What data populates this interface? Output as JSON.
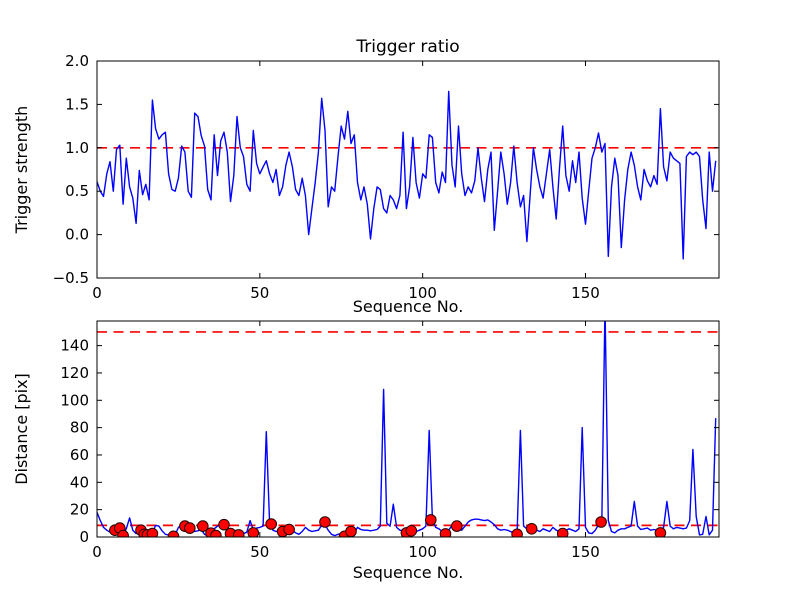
{
  "figure": {
    "title": "Trigger ratio",
    "background_color": "#ffffff",
    "line_color": "#0000ff",
    "threshold_color": "#ff0000",
    "marker_face_color": "#ff0000",
    "marker_edge_color": "#220000"
  },
  "chart_data": [
    {
      "type": "line",
      "title": "Trigger ratio",
      "xlabel": "Sequence No.",
      "ylabel": "Trigger strength",
      "xlim": [
        0,
        191
      ],
      "ylim": [
        -0.5,
        2.0
      ],
      "xticks": [
        0,
        50,
        100,
        150
      ],
      "xtick_labels": [
        "0",
        "50",
        "100",
        "150"
      ],
      "yticks": [
        -0.5,
        0.0,
        0.5,
        1.0,
        1.5,
        2.0
      ],
      "ytick_labels": [
        "−0.5",
        "0.0",
        "0.5",
        "1.0",
        "1.5",
        "2.0"
      ],
      "grid": false,
      "legend": "none",
      "hlines": [
        {
          "y": 1.0,
          "color": "#ff0000",
          "style": "dashed"
        }
      ],
      "series": [
        {
          "name": "trigger-strength",
          "color": "#0000ff",
          "x_start": 0,
          "x_step": 1,
          "values": [
            0.61,
            0.5,
            0.44,
            0.7,
            0.84,
            0.5,
            0.98,
            1.03,
            0.35,
            0.88,
            0.55,
            0.42,
            0.13,
            0.74,
            0.46,
            0.58,
            0.4,
            1.55,
            1.22,
            1.1,
            1.15,
            1.18,
            0.7,
            0.52,
            0.5,
            0.65,
            1.02,
            0.95,
            0.5,
            0.43,
            1.4,
            1.36,
            1.14,
            1.02,
            0.52,
            0.4,
            1.15,
            0.68,
            1.08,
            1.18,
            0.95,
            0.38,
            0.68,
            1.36,
            1.0,
            0.9,
            0.58,
            0.5,
            1.2,
            0.82,
            0.7,
            0.78,
            0.85,
            0.7,
            0.6,
            0.75,
            0.45,
            0.55,
            0.8,
            0.95,
            0.78,
            0.52,
            0.45,
            0.65,
            0.45,
            0.0,
            0.3,
            0.6,
            0.95,
            1.57,
            1.2,
            0.32,
            0.55,
            0.5,
            0.9,
            1.25,
            1.1,
            1.42,
            1.05,
            1.15,
            0.6,
            0.4,
            0.55,
            0.35,
            -0.05,
            0.3,
            0.55,
            0.52,
            0.3,
            0.25,
            0.45,
            0.4,
            0.3,
            0.45,
            1.18,
            0.3,
            0.55,
            1.12,
            0.6,
            0.42,
            0.7,
            0.65,
            1.15,
            1.12,
            0.6,
            0.48,
            0.72,
            0.6,
            1.65,
            0.8,
            0.55,
            1.25,
            0.7,
            0.45,
            0.55,
            0.48,
            0.62,
            1.0,
            0.65,
            0.38,
            0.75,
            0.95,
            0.05,
            0.5,
            0.95,
            0.7,
            0.35,
            0.6,
            1.02,
            0.6,
            0.32,
            0.45,
            -0.08,
            0.45,
            1.0,
            0.75,
            0.55,
            0.42,
            0.7,
            0.98,
            0.55,
            0.18,
            0.75,
            1.25,
            0.68,
            0.5,
            0.85,
            0.6,
            0.95,
            0.42,
            0.12,
            0.5,
            0.88,
            1.0,
            1.17,
            0.95,
            1.05,
            -0.25,
            0.55,
            0.88,
            0.68,
            -0.15,
            0.4,
            0.75,
            0.95,
            0.8,
            0.55,
            0.4,
            0.75,
            0.62,
            0.55,
            0.68,
            0.58,
            1.45,
            0.78,
            0.62,
            0.95,
            0.88,
            0.85,
            0.82,
            -0.28,
            0.9,
            0.95,
            0.92,
            0.95,
            0.9,
            0.4,
            0.07,
            0.95,
            0.5,
            0.85
          ]
        }
      ]
    },
    {
      "type": "line",
      "title": "",
      "xlabel": "Sequence No.",
      "ylabel": "Distance [pix]",
      "xlim": [
        0,
        191
      ],
      "ylim": [
        0,
        158
      ],
      "xticks": [
        0,
        50,
        100,
        150
      ],
      "xtick_labels": [
        "0",
        "50",
        "100",
        "150"
      ],
      "yticks": [
        0,
        20,
        40,
        60,
        80,
        100,
        120,
        140
      ],
      "ytick_labels": [
        "0",
        "20",
        "40",
        "60",
        "80",
        "100",
        "120",
        "140"
      ],
      "grid": false,
      "legend": "none",
      "hlines": [
        {
          "y": 150,
          "color": "#ff0000",
          "style": "dashed"
        },
        {
          "y": 8.5,
          "color": "#ff0000",
          "style": "dashed"
        }
      ],
      "series": [
        {
          "name": "distance",
          "color": "#0000ff",
          "x_start": 0,
          "x_step": 1,
          "values": [
            18,
            12,
            7,
            5,
            3.5,
            3,
            5.5,
            5,
            2,
            6,
            14,
            5,
            2.5,
            5.5,
            3,
            2,
            2.5,
            3,
            8.5,
            8,
            4.5,
            2,
            1.5,
            1,
            1.5,
            7,
            8.5,
            9,
            7,
            6.5,
            4,
            4.5,
            5.5,
            2,
            1,
            2,
            6,
            8,
            8.5,
            7,
            5,
            3,
            4.5,
            5,
            2,
            2.5,
            3.5,
            12,
            5,
            6.5,
            7,
            8,
            77,
            10,
            5,
            4,
            4.5,
            4,
            5.5,
            6,
            5,
            3,
            2,
            4,
            7,
            5,
            4,
            4.5,
            5,
            8.5,
            9,
            5,
            2,
            1,
            2,
            2.5,
            2,
            3,
            4,
            3,
            7,
            5.5,
            5,
            5,
            4.5,
            5,
            5.5,
            8,
            108,
            10,
            8,
            24,
            7,
            5,
            4.5,
            4,
            5,
            4.5,
            4,
            5,
            6,
            8,
            78,
            13,
            7,
            6,
            4,
            3,
            5,
            8.5,
            7,
            5.5,
            5,
            8,
            11,
            12.5,
            13,
            13,
            12.5,
            12,
            12.5,
            11,
            9,
            6,
            5,
            5.5,
            5,
            4,
            2.5,
            3,
            78,
            8,
            6,
            6,
            6.5,
            5,
            4,
            6,
            5,
            4,
            7,
            5,
            4,
            3,
            5,
            6,
            5,
            4,
            6,
            80,
            7,
            3,
            2.5,
            5,
            9,
            10,
            170,
            12,
            4,
            3,
            5,
            6,
            6,
            7,
            8,
            26,
            8,
            5.5,
            6,
            6.5,
            5,
            5.5,
            5,
            5,
            7,
            26,
            8,
            6,
            7,
            6.5,
            6,
            6.5,
            12,
            64,
            15,
            1.5,
            2,
            15,
            1.5,
            5,
            87
          ]
        }
      ],
      "scatter": {
        "name": "trigger-events",
        "marker": "circle",
        "face_color": "#ff0000",
        "edge_color": "#220000",
        "points": [
          [
            5.5,
            5
          ],
          [
            7,
            6.5
          ],
          [
            8,
            1
          ],
          [
            13.5,
            5
          ],
          [
            14.5,
            2
          ],
          [
            15.5,
            1.5
          ],
          [
            17,
            2.5
          ],
          [
            23.5,
            0.5
          ],
          [
            27,
            8
          ],
          [
            28.5,
            6.5
          ],
          [
            32.5,
            8
          ],
          [
            35,
            2.8
          ],
          [
            36.5,
            1
          ],
          [
            39,
            9
          ],
          [
            41,
            2.5
          ],
          [
            43.5,
            1.5
          ],
          [
            48,
            3
          ],
          [
            53.5,
            9.5
          ],
          [
            57,
            4
          ],
          [
            59,
            5.5
          ],
          [
            70,
            11
          ],
          [
            76,
            0.5
          ],
          [
            78,
            4
          ],
          [
            95,
            3
          ],
          [
            96.5,
            4.5
          ],
          [
            102.5,
            12.5
          ],
          [
            107,
            2.3
          ],
          [
            110.5,
            8
          ],
          [
            129,
            2
          ],
          [
            133.5,
            6
          ],
          [
            143,
            2.5
          ],
          [
            154.8,
            11
          ],
          [
            173,
            3
          ]
        ]
      }
    }
  ]
}
